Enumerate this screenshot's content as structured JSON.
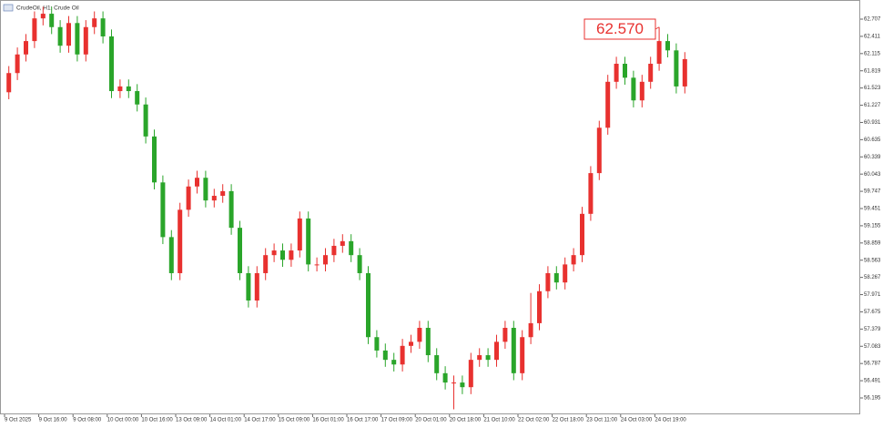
{
  "chart_data": {
    "type": "candlestick",
    "title": "CrudeOil, H1: Crude Oil",
    "up_color": "#e8312f",
    "down_color": "#2aa52a",
    "ylim": [
      55.913,
      63.036
    ],
    "yticks": [
      62.707,
      62.411,
      62.115,
      61.819,
      61.523,
      61.227,
      60.931,
      60.635,
      60.339,
      60.043,
      59.747,
      59.451,
      59.155,
      58.859,
      58.563,
      58.267,
      57.971,
      57.675,
      57.379,
      57.083,
      56.787,
      56.491,
      56.195
    ],
    "categories": [
      "9 Oct 2025",
      null,
      null,
      null,
      "9 Oct 16:00",
      null,
      null,
      null,
      "9 Oct 08:00",
      null,
      null,
      null,
      "10 Oct 00:00",
      null,
      null,
      null,
      "10 Oct 16:00",
      null,
      null,
      null,
      "13 Oct 09:00",
      null,
      null,
      null,
      "14 Oct 01:00",
      null,
      null,
      null,
      "14 Oct 17:00",
      null,
      null,
      null,
      "15 Oct 09:00",
      null,
      null,
      null,
      "16 Oct 01:00",
      null,
      null,
      null,
      "16 Oct 17:00",
      null,
      null,
      null,
      "17 Oct 09:00",
      null,
      null,
      null,
      "20 Oct 01:00",
      null,
      null,
      null,
      "20 Oct 18:00",
      null,
      null,
      null,
      "21 Oct 10:00",
      null,
      null,
      null,
      "22 Oct 02:00",
      null,
      null,
      null,
      "22 Oct 18:00",
      null,
      null,
      null,
      "23 Oct 11:00",
      null,
      null,
      null,
      "24 Oct 03:00",
      null,
      null,
      null,
      "24 Oct 19:00",
      null,
      null,
      null
    ],
    "open": [
      61.45,
      61.78,
      62.1,
      62.33,
      62.72,
      62.8,
      62.57,
      62.25,
      62.64,
      62.1,
      62.57,
      62.72,
      62.41,
      61.47,
      61.55,
      61.47,
      61.24,
      60.69,
      59.9,
      58.96,
      58.34,
      59.43,
      59.83,
      59.98,
      59.59,
      59.67,
      59.75,
      59.12,
      58.34,
      57.87,
      58.34,
      58.65,
      58.73,
      58.57,
      58.73,
      59.28,
      58.49,
      58.49,
      58.65,
      58.81,
      58.89,
      58.65,
      58.34,
      57.24,
      57.01,
      56.85,
      56.77,
      57.09,
      57.16,
      57.4,
      56.93,
      56.62,
      56.46,
      56.46,
      56.38,
      56.85,
      56.93,
      56.85,
      57.16,
      57.4,
      56.62,
      57.24,
      57.48,
      58.03,
      58.34,
      58.18,
      58.49,
      58.65,
      59.36,
      60.06,
      60.84,
      61.63,
      61.94,
      61.7,
      61.31,
      61.63,
      61.94,
      62.33,
      62.17,
      61.55
    ],
    "high": [
      61.9,
      62.22,
      62.45,
      62.84,
      62.92,
      62.92,
      62.69,
      62.76,
      62.76,
      62.69,
      62.84,
      62.84,
      62.53,
      61.67,
      61.67,
      61.59,
      61.36,
      60.81,
      60.02,
      59.08,
      59.55,
      59.95,
      60.1,
      60.1,
      59.79,
      59.87,
      59.87,
      59.24,
      58.46,
      58.46,
      58.77,
      58.85,
      58.85,
      58.85,
      59.4,
      59.4,
      58.61,
      58.77,
      58.93,
      59.01,
      59.01,
      58.77,
      58.46,
      57.36,
      57.13,
      56.97,
      57.21,
      57.28,
      57.52,
      57.52,
      57.05,
      56.74,
      56.58,
      56.58,
      56.97,
      57.05,
      57.05,
      57.28,
      57.52,
      57.52,
      57.36,
      58.0,
      58.15,
      58.46,
      58.46,
      58.61,
      58.77,
      59.48,
      60.18,
      60.96,
      61.75,
      62.06,
      62.06,
      61.82,
      61.75,
      62.06,
      62.57,
      62.45,
      62.29,
      62.14
    ],
    "low": [
      61.33,
      61.66,
      61.98,
      62.21,
      62.6,
      62.45,
      62.13,
      62.13,
      61.98,
      61.98,
      62.45,
      62.29,
      61.35,
      61.35,
      61.35,
      61.12,
      60.57,
      59.78,
      58.84,
      58.22,
      58.22,
      59.31,
      59.71,
      59.47,
      59.47,
      59.55,
      59.0,
      58.22,
      57.75,
      57.75,
      58.22,
      58.53,
      58.45,
      58.45,
      58.61,
      58.37,
      58.37,
      58.37,
      58.53,
      58.69,
      58.53,
      58.22,
      57.12,
      56.89,
      56.73,
      56.65,
      56.65,
      56.97,
      57.04,
      56.81,
      56.5,
      56.34,
      56.0,
      56.26,
      56.26,
      56.73,
      56.73,
      56.73,
      57.04,
      56.5,
      56.5,
      57.12,
      57.36,
      57.91,
      58.06,
      58.06,
      58.37,
      58.53,
      59.24,
      59.94,
      60.72,
      61.51,
      61.58,
      61.19,
      61.19,
      61.51,
      61.82,
      62.05,
      61.43,
      61.43
    ],
    "close": [
      61.78,
      62.1,
      62.33,
      62.72,
      62.8,
      62.57,
      62.25,
      62.64,
      62.1,
      62.57,
      62.72,
      62.41,
      61.47,
      61.55,
      61.47,
      61.24,
      60.69,
      59.9,
      58.96,
      58.34,
      59.43,
      59.83,
      59.98,
      59.59,
      59.67,
      59.75,
      59.12,
      58.34,
      57.87,
      58.34,
      58.65,
      58.73,
      58.57,
      58.73,
      59.28,
      58.49,
      58.49,
      58.65,
      58.81,
      58.89,
      58.65,
      58.34,
      57.24,
      57.01,
      56.85,
      56.77,
      57.09,
      57.16,
      57.4,
      56.93,
      56.62,
      56.46,
      56.46,
      56.38,
      56.85,
      56.93,
      56.85,
      57.16,
      57.4,
      56.62,
      57.24,
      57.48,
      58.03,
      58.34,
      58.18,
      58.49,
      58.65,
      59.36,
      60.06,
      60.84,
      61.63,
      61.94,
      61.7,
      61.31,
      61.63,
      61.94,
      62.33,
      62.17,
      61.55,
      62.02
    ],
    "annotation": {
      "value": 62.57,
      "label": "62.570"
    }
  }
}
